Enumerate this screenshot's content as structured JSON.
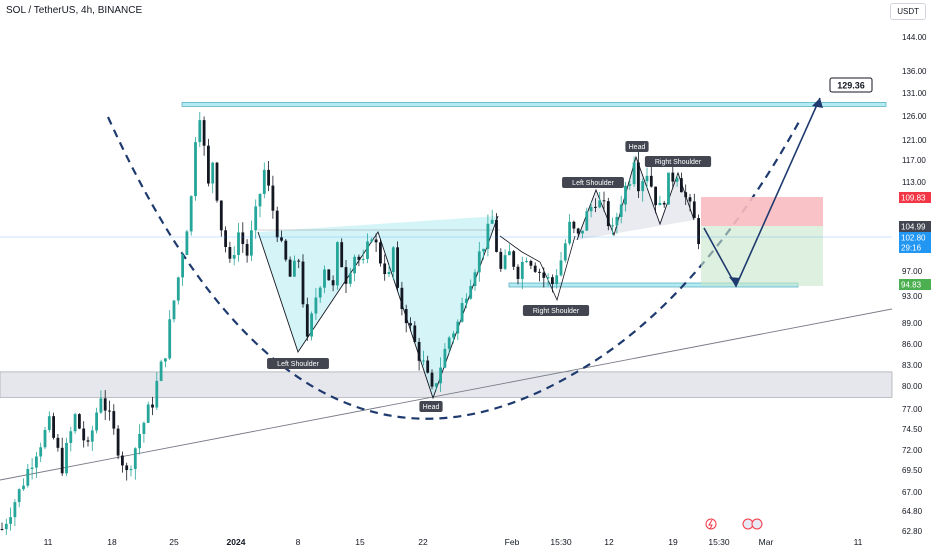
{
  "symbol_title": "SOL / TetherUS, 4h, BINANCE",
  "currency_button": "USDT",
  "colors": {
    "up": "#26a69a",
    "down": "#131722",
    "pattern_line": "#131722",
    "pattern_fill": "#b2ebf2",
    "zone_fill": "#b2ebf2",
    "support_fill": "#d1d4dc",
    "stop_fill": "#f8bbc0",
    "target_fill": "#c8e6c9"
  },
  "chart_data": {
    "type": "candlestick",
    "title": "SOL / TetherUS, 4h, BINANCE",
    "x_ticks": [
      "11",
      "18",
      "25",
      "2024",
      "8",
      "15",
      "22",
      "Feb",
      "15:30",
      "12",
      "19",
      "15:30",
      "Mar",
      "11"
    ],
    "y_ticks": [
      "144.00",
      "136.00",
      "131.00",
      "126.00",
      "121.00",
      "117.00",
      "113.00",
      "109.00",
      "104.99",
      "102.80",
      "97.00",
      "93.00",
      "89.00",
      "86.00",
      "83.00",
      "80.00",
      "77.00",
      "74.50",
      "72.00",
      "69.50",
      "67.00",
      "64.80",
      "62.80"
    ],
    "y_scale": "log",
    "ylim": [
      62,
      148
    ],
    "price_path": [
      [
        0,
        63
      ],
      [
        4,
        67
      ],
      [
        8,
        72
      ],
      [
        11,
        75
      ],
      [
        14,
        70
      ],
      [
        17,
        76
      ],
      [
        20,
        72
      ],
      [
        23,
        79
      ],
      [
        26,
        74
      ],
      [
        29,
        69
      ],
      [
        32,
        74
      ],
      [
        35,
        78
      ],
      [
        38,
        85
      ],
      [
        41,
        96
      ],
      [
        44,
        110
      ],
      [
        45,
        122
      ],
      [
        46,
        127
      ],
      [
        47,
        119
      ],
      [
        48,
        112
      ],
      [
        49,
        117
      ],
      [
        51,
        105
      ],
      [
        53,
        98
      ],
      [
        55,
        104
      ],
      [
        57,
        100
      ],
      [
        59,
        107
      ],
      [
        61,
        115
      ],
      [
        63,
        108
      ],
      [
        65,
        101
      ],
      [
        67,
        96
      ],
      [
        69,
        99
      ],
      [
        71,
        86
      ],
      [
        73,
        93
      ],
      [
        75,
        98
      ],
      [
        77,
        94
      ],
      [
        78,
        101
      ],
      [
        80,
        96
      ],
      [
        82,
        100
      ],
      [
        84,
        98
      ],
      [
        86,
        104
      ],
      [
        88,
        99
      ],
      [
        90,
        96
      ],
      [
        91,
        101
      ],
      [
        92,
        93
      ],
      [
        94,
        90
      ],
      [
        96,
        86
      ],
      [
        98,
        83
      ],
      [
        100,
        79
      ],
      [
        102,
        83
      ],
      [
        104,
        87
      ],
      [
        106,
        89
      ],
      [
        108,
        94
      ],
      [
        110,
        98
      ],
      [
        112,
        102
      ],
      [
        114,
        106
      ],
      [
        115,
        101
      ],
      [
        116,
        97
      ],
      [
        118,
        100
      ],
      [
        120,
        97
      ],
      [
        122,
        100
      ],
      [
        124,
        98
      ],
      [
        126,
        96
      ],
      [
        128,
        95
      ],
      [
        130,
        99
      ],
      [
        132,
        105
      ],
      [
        134,
        103
      ],
      [
        136,
        107
      ],
      [
        138,
        110
      ],
      [
        140,
        108
      ],
      [
        142,
        104
      ],
      [
        144,
        110
      ],
      [
        146,
        114
      ],
      [
        147,
        118
      ],
      [
        148,
        113
      ],
      [
        150,
        115
      ],
      [
        152,
        110
      ],
      [
        153,
        108
      ],
      [
        155,
        113
      ],
      [
        157,
        115
      ],
      [
        159,
        110
      ],
      [
        161,
        106
      ],
      [
        162,
        103
      ]
    ],
    "annotations": {
      "target_label": "129.36",
      "stop_level_label": "109.83",
      "entry_label": "104.99",
      "current_price_label": "102.80",
      "countdown_label": "29:16",
      "take_profit_label": "94.83",
      "inv_hs_labels": [
        "Left Shoulder",
        "Head",
        "Right Shoulder"
      ],
      "hs_labels": [
        "Left Shoulder",
        "Head",
        "Right Shoulder"
      ],
      "resistance_level": 129.36,
      "support_zone": [
        78.5,
        82.0
      ]
    }
  }
}
